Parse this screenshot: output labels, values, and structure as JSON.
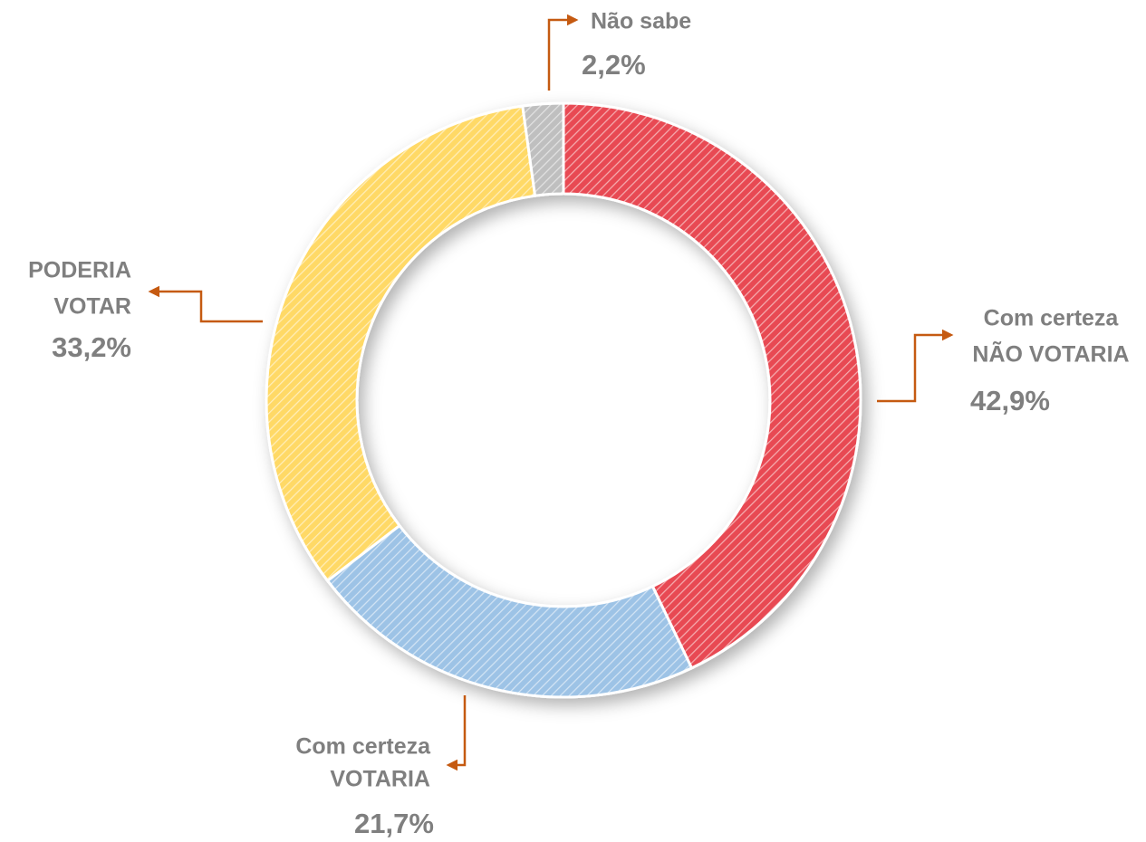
{
  "chart_data": {
    "type": "donut",
    "categories": [
      [
        "Com certeza",
        "NÃO VOTARIA"
      ],
      [
        "Com certeza",
        "VOTARIA"
      ],
      [
        "PODERIA",
        "VOTAR"
      ],
      [
        "Não sabe"
      ]
    ],
    "values": [
      42.9,
      21.7,
      33.2,
      2.2
    ],
    "value_labels": [
      "42,9%",
      "21,7%",
      "33,2%",
      "2,2%"
    ],
    "colors": [
      "#e84a52",
      "#9dc3e6",
      "#ffd966",
      "#bfbfbf"
    ]
  }
}
